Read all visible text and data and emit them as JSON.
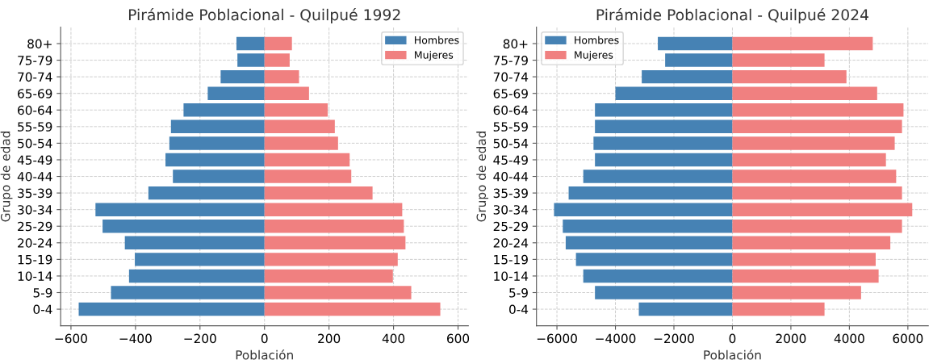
{
  "chart_data": [
    {
      "type": "bar",
      "orientation": "horizontal",
      "title": "Pirámide Poblacional - Quilpué 1992",
      "xlabel": "Población",
      "ylabel": "Grupo de edad",
      "categories": [
        "80+",
        "75-79",
        "70-74",
        "65-69",
        "60-64",
        "55-59",
        "50-54",
        "45-49",
        "40-44",
        "35-39",
        "30-34",
        "25-29",
        "20-24",
        "15-19",
        "10-14",
        "5-9",
        "0-4"
      ],
      "series": [
        {
          "name": "Hombres",
          "color": "#4682b4",
          "values": [
            -87,
            -84,
            -136,
            -176,
            -251,
            -290,
            -295,
            -307,
            -284,
            -360,
            -524,
            -502,
            -433,
            -402,
            -420,
            -476,
            -576
          ]
        },
        {
          "name": "Mujeres",
          "color": "#f08080",
          "values": [
            85,
            78,
            107,
            138,
            196,
            218,
            228,
            264,
            269,
            335,
            427,
            432,
            437,
            413,
            398,
            455,
            545
          ]
        }
      ],
      "xlim": [
        -632,
        632
      ],
      "xticks": [
        {
          "value": -600,
          "label": "−600"
        },
        {
          "value": -400,
          "label": "−400"
        },
        {
          "value": -200,
          "label": "−200"
        },
        0,
        200,
        400,
        600
      ],
      "grid": true,
      "legend": "top right",
      "stacked": true
    },
    {
      "type": "bar",
      "orientation": "horizontal",
      "title": "Pirámide Poblacional - Quilpué 2024",
      "xlabel": "Población",
      "ylabel": "Grupo de edad",
      "categories": [
        "80+",
        "75-79",
        "70-74",
        "65-69",
        "60-64",
        "55-59",
        "50-54",
        "45-49",
        "40-44",
        "35-39",
        "30-34",
        "25-29",
        "20-24",
        "15-19",
        "10-14",
        "5-9",
        "0-4"
      ],
      "series": [
        {
          "name": "Hombres",
          "color": "#4682b4",
          "values": [
            -2550,
            -2300,
            -3100,
            -4000,
            -4700,
            -4700,
            -4750,
            -4700,
            -5100,
            -5600,
            -6100,
            -5800,
            -5700,
            -5350,
            -5100,
            -4700,
            -3200
          ]
        },
        {
          "name": "Mujeres",
          "color": "#f08080",
          "values": [
            4800,
            3150,
            3900,
            4950,
            5850,
            5800,
            5550,
            5250,
            5600,
            5800,
            6150,
            5800,
            5400,
            4900,
            5000,
            4400,
            3150
          ]
        }
      ],
      "xlim": [
        -6700,
        6700
      ],
      "xticks": [
        {
          "value": -6000,
          "label": "−6000"
        },
        {
          "value": -4000,
          "label": "−4000"
        },
        {
          "value": -2000,
          "label": "−2000"
        },
        0,
        2000,
        4000,
        6000
      ],
      "grid": true,
      "legend": "top left",
      "stacked": true
    }
  ]
}
